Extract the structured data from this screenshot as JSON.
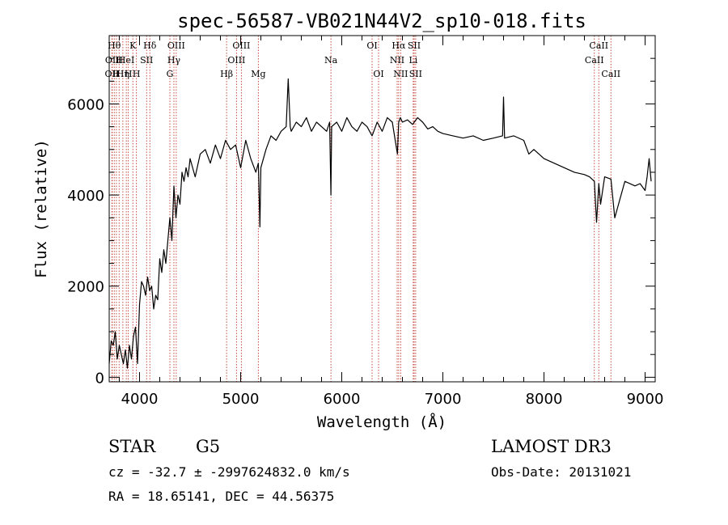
{
  "chart_data": {
    "type": "line",
    "title": "spec-56587-VB021N44V2_sp10-018.fits",
    "xlabel": "Wavelength (Å)",
    "ylabel": "Flux (relative)",
    "xlim": [
      3700,
      9100
    ],
    "ylim": [
      -100,
      7500
    ],
    "xticks": [
      4000,
      5000,
      6000,
      7000,
      8000,
      9000
    ],
    "yticks": [
      0,
      2000,
      4000,
      6000
    ],
    "xtick_labels": [
      "4000",
      "5000",
      "6000",
      "7000",
      "8000",
      "9000"
    ],
    "ytick_labels": [
      "0",
      "2000",
      "4000",
      "6000"
    ],
    "line_color": "#000000",
    "marker_color": "#c0392b",
    "series": [
      {
        "name": "flux",
        "x": [
          3700,
          3720,
          3740,
          3760,
          3780,
          3800,
          3820,
          3840,
          3860,
          3880,
          3900,
          3920,
          3940,
          3960,
          3980,
          4000,
          4020,
          4040,
          4060,
          4080,
          4100,
          4120,
          4140,
          4160,
          4180,
          4200,
          4220,
          4240,
          4260,
          4280,
          4300,
          4320,
          4340,
          4360,
          4380,
          4400,
          4420,
          4440,
          4460,
          4480,
          4500,
          4550,
          4600,
          4650,
          4700,
          4750,
          4800,
          4850,
          4900,
          4950,
          5000,
          5050,
          5100,
          5150,
          5175,
          5190,
          5200,
          5250,
          5300,
          5350,
          5400,
          5450,
          5470,
          5490,
          5500,
          5550,
          5600,
          5650,
          5700,
          5750,
          5800,
          5850,
          5880,
          5893,
          5900,
          5950,
          6000,
          6050,
          6100,
          6150,
          6200,
          6250,
          6300,
          6350,
          6400,
          6450,
          6500,
          6550,
          6563,
          6580,
          6600,
          6650,
          6700,
          6750,
          6800,
          6850,
          6900,
          6950,
          7000,
          7100,
          7200,
          7300,
          7400,
          7500,
          7590,
          7600,
          7610,
          7700,
          7800,
          7850,
          7900,
          7950,
          8000,
          8100,
          8200,
          8300,
          8400,
          8450,
          8498,
          8520,
          8542,
          8560,
          8600,
          8662,
          8700,
          8800,
          8900,
          8950,
          9000,
          9020,
          9040,
          9060
        ],
        "y": [
          300,
          800,
          700,
          1000,
          400,
          700,
          500,
          300,
          600,
          200,
          700,
          400,
          900,
          1100,
          300,
          1600,
          2100,
          2000,
          1800,
          2200,
          1900,
          2000,
          1500,
          1800,
          1700,
          2600,
          2300,
          2800,
          2500,
          3000,
          3500,
          3000,
          4200,
          3500,
          4000,
          3800,
          4500,
          4300,
          4600,
          4400,
          4800,
          4400,
          4900,
          5000,
          4700,
          5100,
          4800,
          5200,
          5000,
          5100,
          4600,
          5200,
          4800,
          4500,
          4700,
          3300,
          4600,
          5000,
          5300,
          5200,
          5400,
          5500,
          6550,
          5500,
          5400,
          5600,
          5500,
          5700,
          5400,
          5600,
          5500,
          5400,
          5600,
          4000,
          5500,
          5600,
          5400,
          5700,
          5500,
          5400,
          5600,
          5500,
          5300,
          5600,
          5400,
          5700,
          5600,
          4900,
          5600,
          5700,
          5600,
          5650,
          5550,
          5700,
          5600,
          5450,
          5500,
          5400,
          5350,
          5300,
          5250,
          5300,
          5200,
          5250,
          5300,
          6150,
          5250,
          5300,
          5200,
          4900,
          5000,
          4900,
          4800,
          4700,
          4600,
          4500,
          4450,
          4400,
          4300,
          3400,
          4250,
          3800,
          4400,
          4350,
          3500,
          4300,
          4200,
          4250,
          4100,
          4400,
          4800,
          4300
        ]
      }
    ],
    "line_markers": [
      {
        "x": 3727,
        "label": "OII",
        "row": 2
      },
      {
        "x": 3730,
        "label": "OII",
        "row": 1
      },
      {
        "x": 3750,
        "label": "Hθ",
        "row": 0
      },
      {
        "x": 3771,
        "label": "H",
        "row": 2
      },
      {
        "x": 3798,
        "label": "H",
        "row": 1
      },
      {
        "x": 3835,
        "label": "Hη",
        "row": 2
      },
      {
        "x": 3869,
        "label": "HeI",
        "row": 1
      },
      {
        "x": 3889,
        "label": "H",
        "row": 2
      },
      {
        "x": 3934,
        "label": "K",
        "row": 0
      },
      {
        "x": 3969,
        "label": "H",
        "row": 2
      },
      {
        "x": 4070,
        "label": "SII",
        "row": 1
      },
      {
        "x": 4102,
        "label": "Hδ",
        "row": 0
      },
      {
        "x": 4300,
        "label": "G",
        "row": 2
      },
      {
        "x": 4340,
        "label": "Hγ",
        "row": 1
      },
      {
        "x": 4363,
        "label": "OIII",
        "row": 0
      },
      {
        "x": 4861,
        "label": "Hβ",
        "row": 2
      },
      {
        "x": 4959,
        "label": "OIII",
        "row": 1
      },
      {
        "x": 5007,
        "label": "OIII",
        "row": 0
      },
      {
        "x": 5175,
        "label": "Mg",
        "row": 2
      },
      {
        "x": 5893,
        "label": "Na",
        "row": 1
      },
      {
        "x": 6300,
        "label": "OI",
        "row": 0
      },
      {
        "x": 6364,
        "label": "OI",
        "row": 2
      },
      {
        "x": 6548,
        "label": "NII",
        "row": 1
      },
      {
        "x": 6563,
        "label": "Hα",
        "row": 0
      },
      {
        "x": 6583,
        "label": "NII",
        "row": 2
      },
      {
        "x": 6707,
        "label": "Li",
        "row": 1
      },
      {
        "x": 6716,
        "label": "SII",
        "row": 0
      },
      {
        "x": 6731,
        "label": "SII",
        "row": 2
      },
      {
        "x": 8498,
        "label": "CaII",
        "row": 1
      },
      {
        "x": 8542,
        "label": "CaII",
        "row": 0
      },
      {
        "x": 8662,
        "label": "CaII",
        "row": 2
      }
    ]
  },
  "info": {
    "class_label": "STAR",
    "subclass": "G5",
    "survey": "LAMOST DR3",
    "cz_line": "cz = -32.7 ± -2997624832.0 km/s",
    "obs_date": "Obs-Date: 20131021",
    "coords": "RA =  18.65141, DEC =  44.56375"
  }
}
